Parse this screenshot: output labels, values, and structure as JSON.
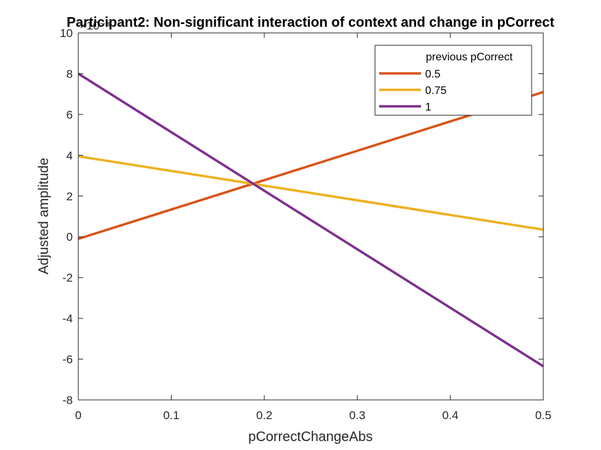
{
  "chart_data": {
    "type": "line",
    "title": "Participant2: Non-significant interaction of context and change in pCorrect",
    "xlabel": "pCorrectChangeAbs",
    "ylabel": "Adjusted amplitude",
    "y_exponent_label": "×10⁻⁴",
    "xlim": [
      0,
      0.5
    ],
    "ylim": [
      -8,
      10
    ],
    "xticks": [
      0,
      0.1,
      0.2,
      0.3,
      0.4,
      0.5
    ],
    "xtick_labels": [
      "0",
      "0.1",
      "0.2",
      "0.3",
      "0.4",
      "0.5"
    ],
    "yticks": [
      -8,
      -6,
      -4,
      -2,
      0,
      2,
      4,
      6,
      8,
      10
    ],
    "ytick_labels": [
      "-8",
      "-6",
      "-4",
      "-2",
      "0",
      "2",
      "4",
      "6",
      "8",
      "10"
    ],
    "grid": false,
    "legend": {
      "title": "previous pCorrect",
      "placement": "top-right"
    },
    "series": [
      {
        "name": "0.5",
        "color": "#D95319",
        "x": [
          0,
          0.5
        ],
        "y": [
          -0.1,
          7.1
        ]
      },
      {
        "name": "0.75",
        "color": "#EDB120",
        "x": [
          0,
          0.5
        ],
        "y": [
          3.95,
          0.35
        ]
      },
      {
        "name": "1",
        "color": "#7E2F8E",
        "x": [
          0,
          0.5
        ],
        "y": [
          8.0,
          -6.35
        ]
      }
    ]
  }
}
